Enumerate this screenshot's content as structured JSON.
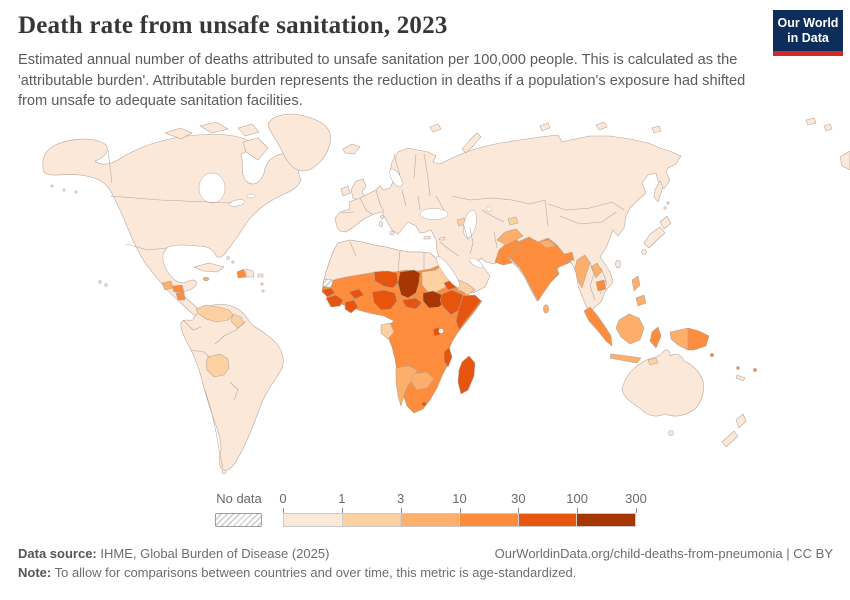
{
  "header": {
    "title": "Death rate from unsafe sanitation, 2023",
    "subtitle": "Estimated annual number of deaths attributed to unsafe sanitation per 100,000 people. This is calculated as the 'attributable burden'. Attributable burden represents the reduction in deaths if a population's exposure had shifted from unsafe to adequate sanitation facilities.",
    "logo": {
      "line1": "Our World",
      "line2": "in Data",
      "bg_color": "#0d2e5a",
      "accent_color": "#cf2a27"
    }
  },
  "legend": {
    "no_data_label": "No data",
    "tick_labels": [
      "0",
      "1",
      "3",
      "10",
      "30",
      "100",
      "300"
    ],
    "bin_colors": [
      "#fbe8d9",
      "#fdd0a2",
      "#fdae6b",
      "#fd8d3c",
      "#e6550d",
      "#a63603"
    ]
  },
  "map": {
    "ocean_color": "#ffffff",
    "border_color": "#b2a398",
    "regions": {
      "north-america": 0,
      "greenland": 0,
      "arctic-island-1": 0,
      "arctic-island-2": 0,
      "arctic-island-3": 0,
      "baffin-island": 0,
      "iceland": 0,
      "uk": 0,
      "ireland": 0,
      "eurasia": 0,
      "svalbard": 0,
      "novaya-zemlya": 0,
      "severnaya-zemlya": 0,
      "new-siberian-islands": 0,
      "wrangel-island": 0,
      "arctic-ne-island-1": 0,
      "arctic-ne-island-2": 0,
      "chukotka-east": 0,
      "sakhalin": 0,
      "kuril-1": 0,
      "kuril-2": 0,
      "japan-hokkaido": 0,
      "japan-honshu": 0,
      "japan-kyushu": 0,
      "taiwan": 0,
      "hainan": 0,
      "aleutian-1": 0,
      "aleutian-2": 0,
      "aleutian-3": 0,
      "hawaii-1": 0,
      "hawaii-2": 0,
      "cuba": 0,
      "bahamas-1": 0,
      "bahamas-2": 0,
      "dominican-republic": 0,
      "puerto-rico": 0,
      "lesser-antilles-1": 0,
      "lesser-antilles-2": 0,
      "south-america": 0,
      "tierra-del-fuego": 0,
      "australia": 0,
      "tasmania": 0,
      "new-zealand-north": 0,
      "new-zealand-south": 0,
      "new-caledonia": 0,
      "sicily": 0,
      "sardinia": 0,
      "corsica": 0,
      "crete": 0,
      "cyprus": 0,
      "africa-north": 0,
      "venezuela": 1,
      "guyana": 1,
      "bolivia": 1,
      "sudan": 1,
      "gabon": 1,
      "yemen": 1,
      "azerbaijan": 1,
      "tajikistan": 1,
      "malaysia": 1,
      "timor": 1,
      "guatemala": 2,
      "jamaica": 2,
      "namibia": 2,
      "botswana": 2,
      "afghanistan": 2,
      "nepal": 2,
      "sri-lanka": 2,
      "myanmar": 2,
      "laos": 2,
      "java": 2,
      "borneo": 2,
      "indonesia-papua": 2,
      "philippines-luzon": 2,
      "philippines-mindanao": 2,
      "africa-base": 3,
      "haiti": 3,
      "honduras": 3,
      "nicaragua": 3,
      "india": 3,
      "pakistan": 3,
      "bangladesh": 3,
      "cambodia": 3,
      "sumatra": 3,
      "sulawesi": 3,
      "papua-new-guinea": 3,
      "solomon-islands": 3,
      "vanuatu": 3,
      "fiji": 3,
      "niger": 4,
      "nigeria": 4,
      "senegal": 4,
      "guinea": 4,
      "cote-divoire": 4,
      "burkina-faso": 4,
      "central-african-republic": 4,
      "eritrea": 4,
      "ethiopia": 4,
      "somalia": 4,
      "rwanda-burundi": 4,
      "malawi": 4,
      "lesotho": 4,
      "madagascar": 4,
      "chad": 5,
      "south-sudan": 5,
      "western-sahara": "no-data"
    }
  },
  "footer": {
    "source_label": "Data source:",
    "source_text": " IHME, Global Burden of Disease (2025)",
    "credit_text": "OurWorldinData.org/child-deaths-from-pneumonia | CC BY",
    "note_label": "Note:",
    "note_text": " To allow for comparisons between countries and over time, this metric is age-standardized."
  },
  "chart_data": {
    "type": "heatmap",
    "title": "Death rate from unsafe sanitation, 2023",
    "unit": "deaths per 100,000 people (age-standardized)",
    "legend_position": "bottom",
    "scale_type": "log-binned",
    "bins": [
      "0-1",
      "1-3",
      "3-10",
      "10-30",
      "30-100",
      "100-300"
    ],
    "bin_colors": [
      "#fbe8d9",
      "#fdd0a2",
      "#fdae6b",
      "#fd8d3c",
      "#e6550d",
      "#a63603"
    ],
    "no_data_label": "No data",
    "region_values": {
      "Chad": "100-300",
      "South Sudan": "100-300",
      "Niger": "30-100",
      "Nigeria": "30-100",
      "Somalia": "30-100",
      "Ethiopia": "30-100",
      "Eritrea": "30-100",
      "Central African Republic": "30-100",
      "Madagascar": "30-100",
      "Malawi": "30-100",
      "Guinea": "30-100",
      "Cote d'Ivoire": "30-100",
      "Burkina Faso": "30-100",
      "Senegal": "30-100",
      "Lesotho": "30-100",
      "Most of Sub-Saharan Africa": "10-30",
      "India": "10-30",
      "Pakistan": "10-30",
      "Bangladesh": "10-30",
      "Cambodia": "10-30",
      "Papua New Guinea": "10-30",
      "Haiti": "10-30",
      "Honduras": "10-30",
      "Nicaragua": "10-30",
      "Sumatra (Indonesia)": "10-30",
      "Afghanistan": "3-10",
      "Myanmar": "3-10",
      "Laos": "3-10",
      "Indonesia": "3-10",
      "Philippines": "3-10",
      "Namibia": "3-10",
      "Botswana": "3-10",
      "Guatemala": "3-10",
      "Nepal": "3-10",
      "Sri Lanka": "3-10",
      "Sudan": "1-3",
      "Bolivia": "1-3",
      "Venezuela": "1-3",
      "Guyana": "1-3",
      "Yemen": "1-3",
      "Azerbaijan": "1-3",
      "Tajikistan": "1-3",
      "Gabon": "1-3",
      "Malaysia": "1-3",
      "North America": "0-1",
      "Europe": "0-1",
      "Russia": "0-1",
      "China": "0-1",
      "North Africa": "0-1",
      "Middle East (most)": "0-1",
      "South America (most)": "0-1",
      "Australia": "0-1",
      "New Zealand": "0-1",
      "Japan": "0-1",
      "Western Sahara": "No data"
    }
  }
}
